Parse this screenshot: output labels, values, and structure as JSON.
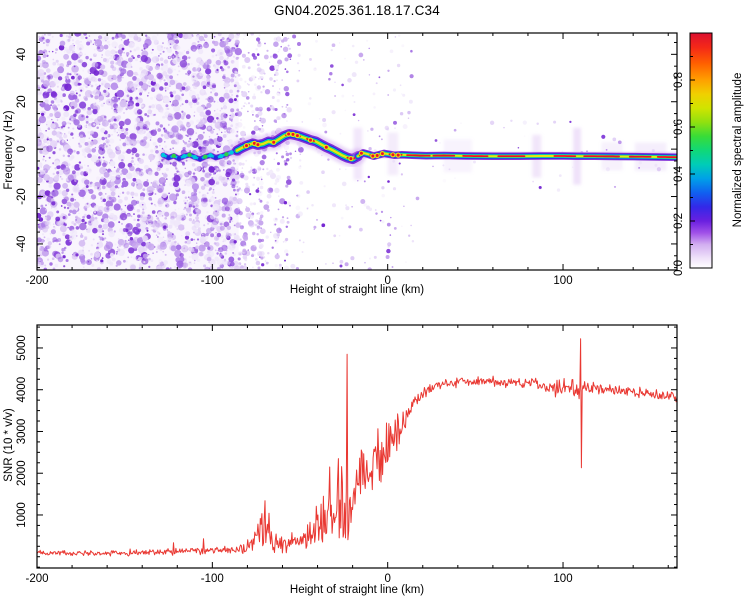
{
  "title": "GN04.2025.361.18.17.C34",
  "colorbar": {
    "label": "Normalized spectral amplitude",
    "tick_labels": [
      "0.0",
      "0.2",
      "0.4",
      "0.6",
      "0.8"
    ],
    "tick_values": [
      0,
      0.2,
      0.4,
      0.6,
      0.8
    ],
    "range": [
      0,
      1
    ],
    "stops": [
      [
        0,
        "#ffffff"
      ],
      [
        0.04,
        "#f0e4fa"
      ],
      [
        0.1,
        "#d2aef0"
      ],
      [
        0.15,
        "#a050e8"
      ],
      [
        0.2,
        "#6a20e0"
      ],
      [
        0.26,
        "#3328e8"
      ],
      [
        0.32,
        "#1060f0"
      ],
      [
        0.38,
        "#00a0e8"
      ],
      [
        0.44,
        "#00ccb8"
      ],
      [
        0.5,
        "#10d878"
      ],
      [
        0.56,
        "#38dc38"
      ],
      [
        0.62,
        "#90e010"
      ],
      [
        0.68,
        "#d0e400"
      ],
      [
        0.74,
        "#f0d000"
      ],
      [
        0.8,
        "#ffa000"
      ],
      [
        0.87,
        "#ff6000"
      ],
      [
        0.94,
        "#f42818"
      ],
      [
        1,
        "#dc1030"
      ]
    ]
  },
  "chart_data": [
    {
      "id": "spectrogram",
      "type": "heatmap",
      "xlabel": "Height of straight line (km)",
      "ylabel": "Frequency (Hz)",
      "x_range": [
        -200,
        165
      ],
      "y_range": [
        -51,
        49
      ],
      "x_ticks": [
        -200,
        -100,
        0,
        100
      ],
      "x_tick_labels": [
        "-200",
        "-100",
        "0",
        "100"
      ],
      "x_minor_step": 20,
      "y_ticks": [
        -40,
        -20,
        0,
        20,
        40
      ],
      "y_tick_labels": [
        "-40",
        "-20",
        "0",
        "20",
        "40"
      ],
      "y_minor_step": 5,
      "ridge_km_hz": [
        [
          -128,
          -2.5
        ],
        [
          -125,
          -3.6
        ],
        [
          -122,
          -2.8
        ],
        [
          -119,
          -4.0
        ],
        [
          -116,
          -3.0
        ],
        [
          -113,
          -2.4
        ],
        [
          -110,
          -3.4
        ],
        [
          -107,
          -4.2
        ],
        [
          -104,
          -3.2
        ],
        [
          -101,
          -2.6
        ],
        [
          -98,
          -3.6
        ],
        [
          -95,
          -3.0
        ],
        [
          -92,
          -2.2
        ],
        [
          -89,
          -1.4
        ],
        [
          -86,
          -0.6
        ],
        [
          -83,
          0.6
        ],
        [
          -80,
          1.6
        ],
        [
          -77,
          2.4
        ],
        [
          -74,
          1.8
        ],
        [
          -71,
          2.2
        ],
        [
          -68,
          3.2
        ],
        [
          -65,
          2.8
        ],
        [
          -62,
          4.2
        ],
        [
          -59,
          5.6
        ],
        [
          -56,
          6.4
        ],
        [
          -53,
          6.0
        ],
        [
          -50,
          5.4
        ],
        [
          -47,
          4.6
        ],
        [
          -44,
          3.8
        ],
        [
          -41,
          3.2
        ],
        [
          -38,
          2.0
        ],
        [
          -35,
          0.8
        ],
        [
          -32,
          -0.2
        ],
        [
          -29,
          -1.4
        ],
        [
          -26,
          -2.6
        ],
        [
          -23,
          -3.6
        ],
        [
          -20,
          -4.2
        ],
        [
          -17,
          -3.0
        ],
        [
          -14,
          -1.6
        ],
        [
          -11,
          -2.2
        ],
        [
          -8,
          -3.0
        ],
        [
          -5,
          -2.4
        ],
        [
          -2,
          -1.8
        ],
        [
          1,
          -2.2
        ],
        [
          4,
          -2.6
        ],
        [
          8,
          -2.4
        ],
        [
          14,
          -2.6
        ],
        [
          22,
          -2.8
        ],
        [
          32,
          -2.7
        ],
        [
          45,
          -2.9
        ],
        [
          60,
          -3.0
        ],
        [
          75,
          -3.0
        ],
        [
          88,
          -2.9
        ],
        [
          100,
          -2.9
        ],
        [
          108,
          -3.0
        ],
        [
          118,
          -3.0
        ],
        [
          130,
          -3.1
        ],
        [
          145,
          -3.2
        ],
        [
          165,
          -3.4
        ]
      ],
      "hot_segments_km": [
        [
          -82,
          -79
        ],
        [
          -77,
          -73
        ],
        [
          -58,
          -50
        ],
        [
          -46,
          -42
        ],
        [
          -23,
          -19
        ],
        [
          -16,
          -14
        ],
        [
          -10,
          -3
        ],
        [
          1,
          8
        ],
        [
          11,
          24
        ],
        [
          26,
          38
        ],
        [
          43,
          57
        ],
        [
          63,
          78
        ],
        [
          95,
          107
        ],
        [
          112,
          132
        ],
        [
          138,
          150
        ],
        [
          154,
          165
        ]
      ],
      "red_dots_km_hz": [
        [
          -80.5,
          1.5
        ],
        [
          -76,
          2.4
        ],
        [
          -74,
          1.9
        ],
        [
          -65,
          2.9
        ],
        [
          -56.5,
          6.4
        ],
        [
          -54,
          6.2
        ],
        [
          -51.5,
          5.7
        ],
        [
          -44,
          3.8
        ],
        [
          -35,
          0.8
        ],
        [
          -21,
          -4.0
        ],
        [
          -15,
          -1.7
        ],
        [
          -8.5,
          -2.9
        ],
        [
          -6,
          -2.7
        ],
        [
          -3,
          -1.9
        ],
        [
          3,
          -2.4
        ],
        [
          6,
          -2.5
        ]
      ],
      "tail_blobs": [
        [
          -128,
          -2.5,
          "#00c8dd"
        ],
        [
          -125,
          -3.6,
          "#2a28e0"
        ],
        [
          -122,
          -2.8,
          "#2ed04a"
        ],
        [
          -119,
          -4.0,
          "#2a28e0"
        ],
        [
          -116,
          -3.0,
          "#00c8dd"
        ],
        [
          -113,
          -2.4,
          "#2ed04a"
        ],
        [
          -110,
          -3.4,
          "#00c8dd"
        ],
        [
          -107,
          -4.2,
          "#2a28e0"
        ],
        [
          -104,
          -3.2,
          "#2ed04a"
        ],
        [
          -101,
          -2.6,
          "#00c8dd"
        ],
        [
          -98,
          -3.6,
          "#2a28e0"
        ],
        [
          -95,
          -3.0,
          "#00c8dd"
        ],
        [
          -92,
          -2.2,
          "#2ed04a"
        ],
        [
          -89,
          -1.4,
          "#00c8dd"
        ]
      ],
      "streaks": [
        [
          -17,
          2.5,
          -2,
          11,
          0.28
        ],
        [
          3,
          3,
          -2,
          9,
          0.22
        ],
        [
          40,
          8,
          -2.8,
          7,
          0.14
        ],
        [
          85,
          2.5,
          -3,
          9,
          0.3
        ],
        [
          108,
          2.2,
          -3,
          12,
          0.33
        ],
        [
          128,
          6,
          -3,
          6,
          0.16
        ],
        [
          150,
          9,
          -3.2,
          6,
          0.2
        ]
      ],
      "noise": {
        "seed": 7,
        "dense": {
          "x": [
            -200,
            -85
          ],
          "count": 2600
        },
        "sparse": {
          "x": [
            -86,
            -46
          ],
          "count": 300,
          "bias": 2.0
        },
        "columns": [
          [
            -73,
            40
          ],
          [
            -63,
            35
          ],
          [
            -57,
            30
          ],
          [
            -50,
            22
          ]
        ],
        "mid_sprinkle": {
          "x": [
            -46,
            18
          ],
          "count": 150
        },
        "right_sprinkle": {
          "x": [
            18,
            165
          ],
          "count": 40
        },
        "palette": [
          "#efe7fa",
          "#e4d4f7",
          "#d7c0f3",
          "#c7a6ee",
          "#b388e9",
          "#9c64e2",
          "#8540da",
          "#7526d2"
        ],
        "wash_color": "#f4edfc"
      }
    },
    {
      "id": "snr",
      "type": "line",
      "xlabel": "Height of straight line (km)",
      "ylabel": "SNR (10 * v/v)",
      "x_range": [
        -200,
        165
      ],
      "y_range": [
        -270,
        5550
      ],
      "x_ticks": [
        -200,
        -100,
        0,
        100
      ],
      "x_tick_labels": [
        "-200",
        "-100",
        "0",
        "100"
      ],
      "x_minor_step": 20,
      "y_ticks": [
        1000,
        2000,
        3000,
        4000,
        5000
      ],
      "y_tick_labels": [
        "1000",
        "2000",
        "3000",
        "4000",
        "5000"
      ],
      "y_minor_step": 250,
      "line_color": "#e93832",
      "anchors_km_base_amp": [
        [
          -200,
          90,
          85
        ],
        [
          -160,
          90,
          85
        ],
        [
          -130,
          100,
          95
        ],
        [
          -112,
          135,
          120
        ],
        [
          -96,
          150,
          130
        ],
        [
          -86,
          150,
          130
        ],
        [
          -79,
          260,
          240
        ],
        [
          -74,
          560,
          620
        ],
        [
          -70,
          660,
          680
        ],
        [
          -66,
          520,
          540
        ],
        [
          -62,
          360,
          340
        ],
        [
          -57,
          300,
          290
        ],
        [
          -52,
          330,
          310
        ],
        [
          -47,
          410,
          390
        ],
        [
          -43,
          560,
          540
        ],
        [
          -39,
          820,
          780
        ],
        [
          -35,
          1020,
          980
        ],
        [
          -31,
          1120,
          1080
        ],
        [
          -27,
          1220,
          1140
        ],
        [
          -23,
          1320,
          1240
        ],
        [
          -19,
          1520,
          1150
        ],
        [
          -15,
          1720,
          1080
        ],
        [
          -11,
          1920,
          1020
        ],
        [
          -7,
          2120,
          960
        ],
        [
          -3,
          2330,
          870
        ],
        [
          1,
          2620,
          760
        ],
        [
          5,
          2920,
          660
        ],
        [
          9,
          3220,
          530
        ],
        [
          13,
          3520,
          410
        ],
        [
          17,
          3760,
          310
        ],
        [
          21,
          3960,
          230
        ],
        [
          25,
          4060,
          175
        ],
        [
          30,
          4110,
          155
        ],
        [
          40,
          4160,
          150
        ],
        [
          55,
          4210,
          150
        ],
        [
          70,
          4160,
          150
        ],
        [
          85,
          4110,
          170
        ],
        [
          95,
          4060,
          240
        ],
        [
          103,
          4010,
          330
        ],
        [
          108,
          3990,
          380
        ],
        [
          112,
          4040,
          170
        ],
        [
          125,
          4000,
          145
        ],
        [
          140,
          3950,
          145
        ],
        [
          155,
          3860,
          145
        ],
        [
          165,
          3810,
          145
        ]
      ],
      "spikes_km_value": [
        [
          -23,
          4850
        ],
        [
          -22.4,
          620
        ],
        [
          109.9,
          5220
        ],
        [
          110.35,
          2130
        ],
        [
          -105,
          430
        ],
        [
          -122,
          335
        ],
        [
          -69.8,
          1340
        ],
        [
          -33,
          2150
        ],
        [
          -28,
          2350
        ]
      ],
      "noise_seed": 13,
      "step_km": 0.45,
      "floor": -40
    }
  ]
}
